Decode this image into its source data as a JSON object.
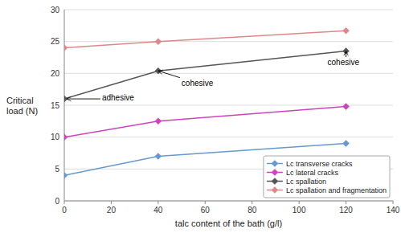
{
  "chart_data": {
    "type": "line",
    "xlabel": "talc content of the bath (g/l)",
    "ylabel": "Critical\nload (N)",
    "x": [
      0,
      40,
      120
    ],
    "series": [
      {
        "name": "Lc transverse cracks",
        "color": "#6699cc",
        "marker": "diamond",
        "values": [
          4.0,
          7.0,
          9.0
        ]
      },
      {
        "name": "Lc lateral cracks",
        "color": "#cc44bb",
        "marker": "diamond",
        "values": [
          10.0,
          12.5,
          14.8
        ]
      },
      {
        "name": "Lc spallation",
        "color": "#555555",
        "marker": "diamond",
        "values": [
          16.0,
          20.4,
          23.5
        ]
      },
      {
        "name": "Lc spallation and fragmentation",
        "color": "#dd8888",
        "marker": "diamond",
        "values": [
          24.0,
          25.0,
          26.7
        ]
      }
    ],
    "xlim": [
      0,
      140
    ],
    "ylim": [
      0,
      30
    ],
    "xticks": [
      0,
      20,
      40,
      60,
      80,
      100,
      120,
      140
    ],
    "yticks": [
      0,
      5,
      10,
      15,
      20,
      25,
      30
    ],
    "grid": true,
    "legend": "lower right",
    "annotations": [
      {
        "text": "adhesive",
        "x": 1,
        "y": 16.0
      },
      {
        "text": "cohesive",
        "x": 40,
        "y": 20.4
      },
      {
        "text": "cohesive",
        "x": 120,
        "y": 23.5
      }
    ]
  }
}
